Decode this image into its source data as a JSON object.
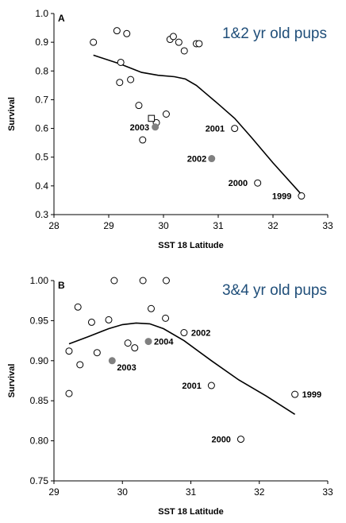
{
  "chart_data": [
    {
      "type": "scatter",
      "panel_label": "A",
      "title": "1&2 yr old pups",
      "xlabel": "SST 18 Latitude",
      "ylabel": "Survival",
      "xlim": [
        28,
        33
      ],
      "ylim": [
        0.3,
        1.0
      ],
      "xticks": [
        "28",
        "29",
        "30",
        "31",
        "32",
        "33"
      ],
      "yticks": [
        "0.3",
        "0.4",
        "0.5",
        "0.6",
        "0.7",
        "0.8",
        "0.9",
        "1.0"
      ],
      "grid": false,
      "series": [
        {
          "marker": "open-circle",
          "points": [
            {
              "x": 28.72,
              "y": 0.9
            },
            {
              "x": 29.15,
              "y": 0.94
            },
            {
              "x": 29.33,
              "y": 0.93
            },
            {
              "x": 29.22,
              "y": 0.83
            },
            {
              "x": 29.2,
              "y": 0.76
            },
            {
              "x": 29.4,
              "y": 0.77
            },
            {
              "x": 29.55,
              "y": 0.68
            },
            {
              "x": 29.62,
              "y": 0.56
            },
            {
              "x": 29.87,
              "y": 0.62
            },
            {
              "x": 30.05,
              "y": 0.65
            },
            {
              "x": 30.12,
              "y": 0.91
            },
            {
              "x": 30.18,
              "y": 0.92
            },
            {
              "x": 30.28,
              "y": 0.9
            },
            {
              "x": 30.38,
              "y": 0.87
            },
            {
              "x": 30.6,
              "y": 0.895
            },
            {
              "x": 30.65,
              "y": 0.895
            },
            {
              "x": 31.3,
              "y": 0.6,
              "label": "2001"
            },
            {
              "x": 31.72,
              "y": 0.41,
              "label": "2000"
            },
            {
              "x": 32.52,
              "y": 0.365,
              "label": "1999"
            }
          ]
        },
        {
          "marker": "open-square",
          "points": [
            {
              "x": 29.78,
              "y": 0.635
            }
          ]
        },
        {
          "marker": "filled-circle",
          "color": "#808080",
          "points": [
            {
              "x": 29.85,
              "y": 0.605,
              "label": "2003"
            },
            {
              "x": 30.88,
              "y": 0.495,
              "label": "2002"
            }
          ]
        }
      ],
      "curve": {
        "x": [
          28.72,
          29.2,
          29.6,
          29.9,
          30.2,
          30.4,
          30.6,
          31.0,
          31.3,
          31.6,
          32.0,
          32.52
        ],
        "y": [
          0.855,
          0.825,
          0.795,
          0.785,
          0.78,
          0.772,
          0.75,
          0.685,
          0.635,
          0.57,
          0.48,
          0.37
        ]
      }
    },
    {
      "type": "scatter",
      "panel_label": "B",
      "title": "3&4 yr old pups",
      "xlabel": "SST 18 Latitude",
      "ylabel": "Survival",
      "xlim": [
        29,
        33
      ],
      "ylim": [
        0.75,
        1.0
      ],
      "xticks": [
        "29",
        "30",
        "31",
        "32",
        "33"
      ],
      "yticks": [
        "0.75",
        "0.80",
        "0.85",
        "0.90",
        "0.95",
        "1.00"
      ],
      "grid": false,
      "series": [
        {
          "marker": "open-circle",
          "points": [
            {
              "x": 29.22,
              "y": 0.912
            },
            {
              "x": 29.22,
              "y": 0.859
            },
            {
              "x": 29.35,
              "y": 0.967
            },
            {
              "x": 29.38,
              "y": 0.895
            },
            {
              "x": 29.55,
              "y": 0.948
            },
            {
              "x": 29.63,
              "y": 0.91
            },
            {
              "x": 29.8,
              "y": 0.951
            },
            {
              "x": 29.88,
              "y": 1.0
            },
            {
              "x": 30.08,
              "y": 0.922
            },
            {
              "x": 30.18,
              "y": 0.916
            },
            {
              "x": 30.3,
              "y": 1.0
            },
            {
              "x": 30.42,
              "y": 0.965
            },
            {
              "x": 30.63,
              "y": 0.953
            },
            {
              "x": 30.64,
              "y": 1.0
            },
            {
              "x": 30.9,
              "y": 0.935,
              "label": "2002"
            },
            {
              "x": 31.3,
              "y": 0.869,
              "label": "2001"
            },
            {
              "x": 31.73,
              "y": 0.802,
              "label": "2000"
            },
            {
              "x": 32.52,
              "y": 0.858,
              "label": "1999"
            }
          ]
        },
        {
          "marker": "filled-circle",
          "color": "#808080",
          "points": [
            {
              "x": 29.85,
              "y": 0.9,
              "label": "2003"
            },
            {
              "x": 30.38,
              "y": 0.924,
              "label": "2004"
            }
          ]
        }
      ],
      "curve": {
        "x": [
          29.22,
          29.5,
          29.8,
          30.0,
          30.2,
          30.4,
          30.6,
          30.9,
          31.3,
          31.7,
          32.1,
          32.52
        ],
        "y": [
          0.921,
          0.93,
          0.94,
          0.945,
          0.947,
          0.946,
          0.94,
          0.925,
          0.9,
          0.876,
          0.856,
          0.833
        ]
      }
    }
  ]
}
